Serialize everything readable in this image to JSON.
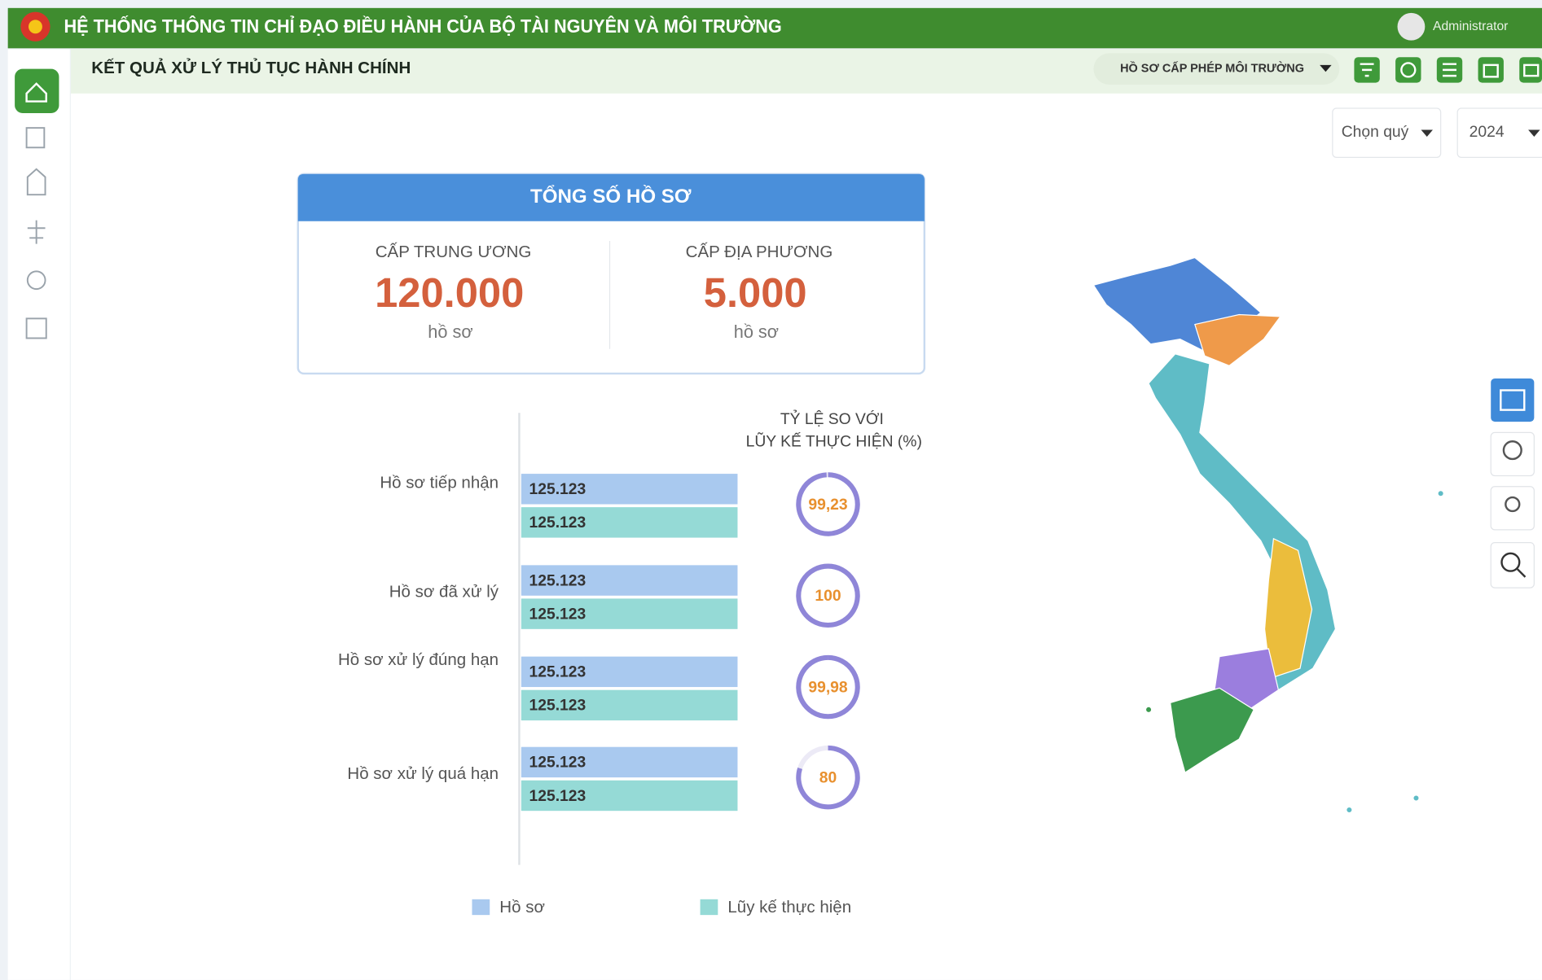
{
  "header": {
    "title": "HỆ THỐNG THÔNG TIN CHỈ ĐẠO ĐIỀU HÀNH CỦA BỘ TÀI NGUYÊN VÀ MÔI TRƯỜNG",
    "user": "Administrator"
  },
  "toolbar": {
    "page_title": "KẾT QUẢ XỬ LÝ THỦ TỤC HÀNH CHÍNH",
    "dropdown": "HỒ SƠ CẤP PHÉP MÔI TRƯỜNG",
    "quarter_select": "Chọn quý",
    "year_select": "2024"
  },
  "summary": {
    "title": "TỔNG SỐ HỒ SƠ",
    "columns": [
      {
        "label": "CẤP TRUNG ƯƠNG",
        "value": "120.000",
        "unit": "hồ sơ"
      },
      {
        "label": "CẤP ĐỊA PHƯƠNG",
        "value": "5.000",
        "unit": "hồ sơ"
      }
    ]
  },
  "chart_data": {
    "type": "bar",
    "categories": [
      "Hồ sơ tiếp nhận",
      "Hồ sơ đã xử lý",
      "Hồ sơ xử lý đúng hạn",
      "Hồ sơ xử lý quá hạn"
    ],
    "series": [
      {
        "name": "Hồ sơ",
        "color": "#a9c9ef",
        "values": [
          125123,
          125123,
          125123,
          125123
        ],
        "value_labels": [
          "125.123",
          "125.123",
          "125.123",
          "125.123"
        ]
      },
      {
        "name": "Lũy kế thực hiện",
        "color": "#95dad6",
        "values": [
          125123,
          125123,
          125123,
          125123
        ],
        "value_labels": [
          "125.123",
          "125.123",
          "125.123",
          "125.123"
        ]
      }
    ],
    "ratio_title": [
      "TỶ LỆ SO VỚI",
      "LŨY KẾ THỰC HIỆN (%)"
    ],
    "ratios": {
      "values": [
        99.23,
        100,
        99.98,
        80
      ],
      "value_labels": [
        "99,23",
        "100",
        "99,98",
        "80"
      ],
      "lim": [
        0,
        100
      ],
      "color": "#8f86d8"
    }
  }
}
